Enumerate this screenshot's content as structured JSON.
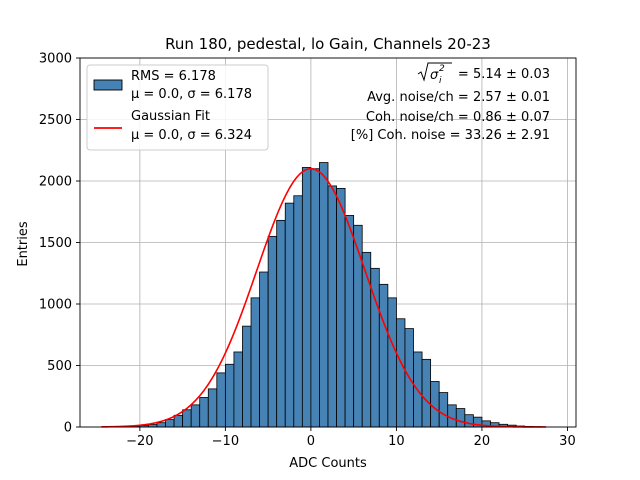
{
  "chart_data": {
    "type": "bar",
    "title": "Run 180, pedestal, lo Gain, Channels 20-23",
    "xlabel": "ADC Counts",
    "ylabel": "Entries",
    "xlim": [
      -27,
      31
    ],
    "ylim": [
      0,
      3000
    ],
    "x_ticks": [
      -20,
      -10,
      0,
      10,
      20,
      30
    ],
    "x_tick_labels": [
      "−20",
      "−10",
      "0",
      "10",
      "20",
      "30"
    ],
    "y_ticks": [
      0,
      500,
      1000,
      1500,
      2000,
      2500,
      3000
    ],
    "y_tick_labels": [
      "0",
      "500",
      "1000",
      "1500",
      "2000",
      "2500",
      "3000"
    ],
    "grid": true,
    "legend_position": "top-left",
    "histogram": {
      "name": "RMS = 6.178",
      "name_line2": "μ = 0.0, σ = 6.178",
      "color": "#4682b4",
      "bin_width": 1,
      "bin_edges_start": -23,
      "counts": [
        3,
        5,
        8,
        12,
        20,
        35,
        60,
        95,
        140,
        180,
        240,
        310,
        440,
        510,
        610,
        820,
        1050,
        1260,
        1550,
        1680,
        1820,
        1880,
        2110,
        2100,
        2150,
        1960,
        1940,
        1720,
        1640,
        1420,
        1290,
        1160,
        1050,
        880,
        800,
        610,
        550,
        370,
        280,
        180,
        150,
        100,
        80,
        50,
        35,
        22,
        15,
        8,
        5,
        3
      ]
    },
    "fit": {
      "name": "Gaussian Fit",
      "name_line2": "μ = 0.0, σ = 6.324",
      "color": "#ff0000",
      "mu": 0.0,
      "sigma": 6.324,
      "amplitude": 2100,
      "x_range": [
        -24.5,
        27.5
      ]
    },
    "annotations": {
      "sigma_value": "= 5.14 ± 0.03",
      "avg_noise": "Avg. noise/ch = 2.57 ± 0.01",
      "coh_noise": "Coh. noise/ch = 0.86 ± 0.07",
      "coh_percent": "[%] Coh. noise = 33.26 ± 2.91"
    }
  }
}
